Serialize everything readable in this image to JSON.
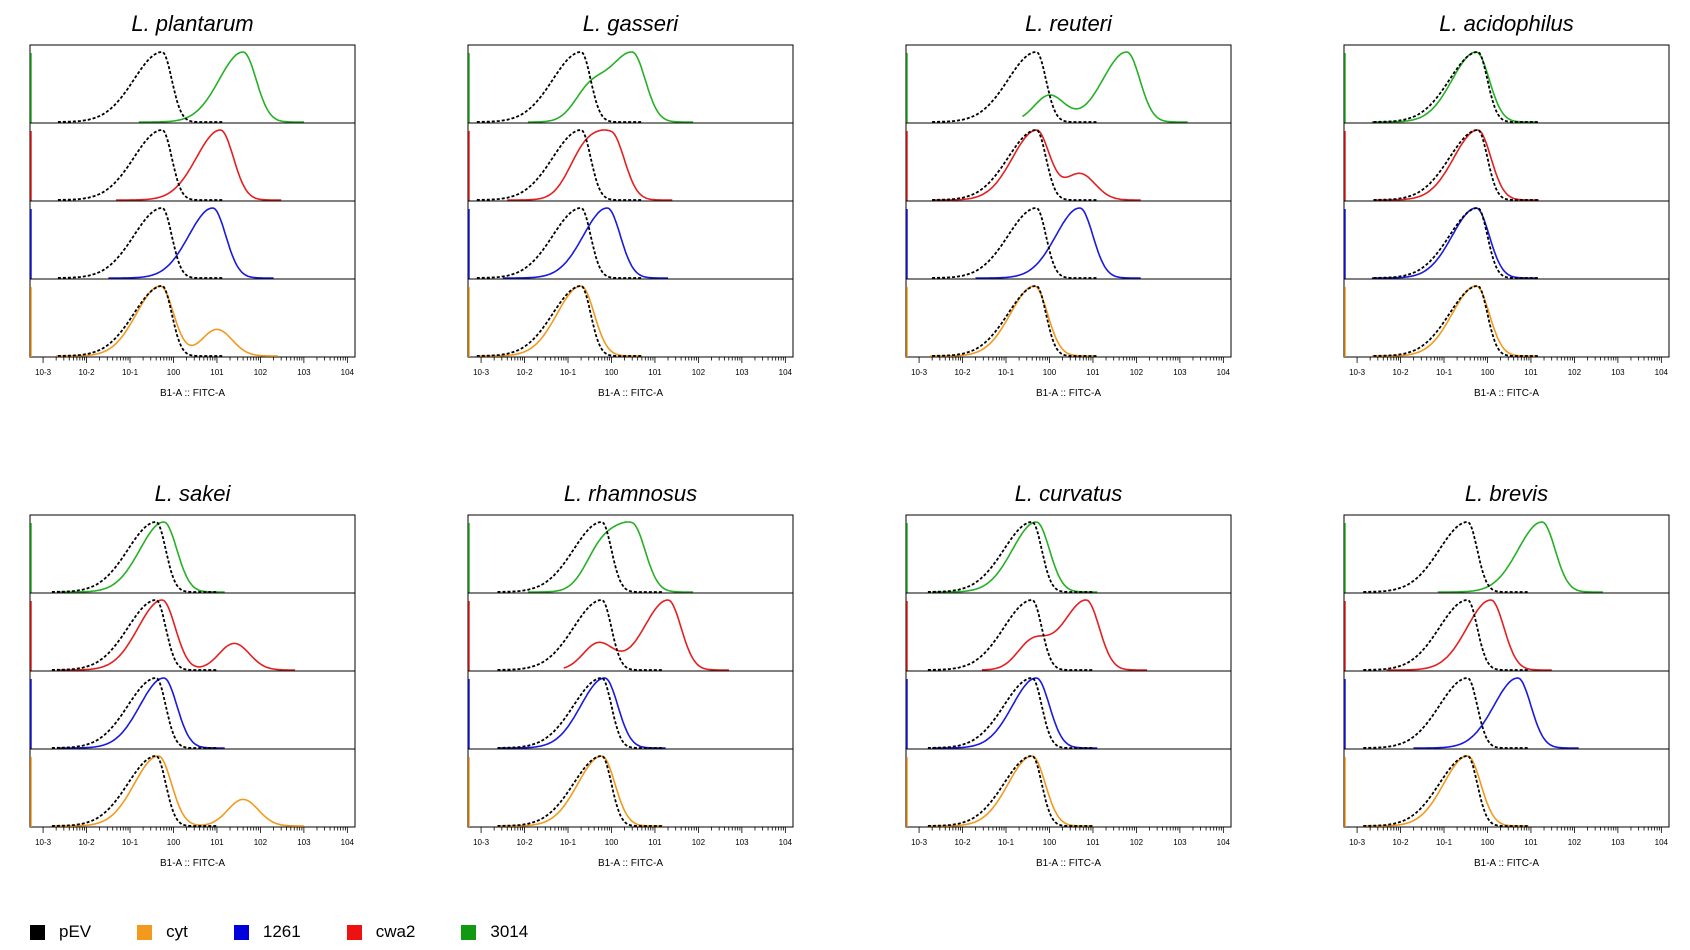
{
  "colors": {
    "pEV": "#000000",
    "cyt": "#f39a1e",
    "1261": "#1a1adf",
    "cwa2": "#e32020",
    "3014": "#26b026",
    "axis": "#000000"
  },
  "legend": [
    {
      "key": "pEV",
      "label": "pEV",
      "swatch": "#000000"
    },
    {
      "key": "cyt",
      "label": "cyt",
      "swatch": "#f39a1e"
    },
    {
      "key": "1261",
      "label": "1261",
      "swatch": "#0000dd"
    },
    {
      "key": "cwa2",
      "label": "cwa2",
      "swatch": "#ee1111"
    },
    {
      "key": "3014",
      "label": "3014",
      "swatch": "#119911"
    }
  ],
  "chart_data": [
    {
      "type": "line",
      "title": "L. plantarum",
      "xlabel": "B1-A :: FITC-A",
      "xscale": "log",
      "xlim": [
        0.0005,
        15000
      ],
      "xticks": [
        "10-3",
        "10-2",
        "10-1",
        "100",
        "101",
        "102",
        "103",
        "104"
      ],
      "control": {
        "name": "pEV",
        "peak": 0.55
      },
      "rows": [
        {
          "series": "3014",
          "peak": 40
        },
        {
          "series": "cwa2",
          "peak": 12
        },
        {
          "series": "1261",
          "peak": 8
        },
        {
          "series": "cyt",
          "peak": 0.5,
          "shoulder": 10
        }
      ]
    },
    {
      "type": "line",
      "title": "L. gasseri",
      "xlabel": "B1-A :: FITC-A",
      "xscale": "log",
      "xlim": [
        0.0005,
        15000
      ],
      "xticks": [
        "10-3",
        "10-2",
        "10-1",
        "100",
        "101",
        "102",
        "103",
        "104"
      ],
      "control": {
        "name": "pEV",
        "peak": 0.2
      },
      "rows": [
        {
          "series": "3014",
          "peak": 3,
          "shoulder": 0.3
        },
        {
          "series": "cwa2",
          "peak": 1,
          "shoulder": 0.2
        },
        {
          "series": "1261",
          "peak": 0.8
        },
        {
          "series": "cyt",
          "peak": 0.2
        }
      ]
    },
    {
      "type": "line",
      "title": "L. reuteri",
      "xlabel": "B1-A :: FITC-A",
      "xscale": "log",
      "xlim": [
        0.0005,
        15000
      ],
      "xticks": [
        "10-3",
        "10-2",
        "10-1",
        "100",
        "101",
        "102",
        "103",
        "104"
      ],
      "control": {
        "name": "pEV",
        "peak": 0.5
      },
      "rows": [
        {
          "series": "3014",
          "peak": 60,
          "shoulder": 1
        },
        {
          "series": "cwa2",
          "peak": 0.5,
          "shoulder": 5
        },
        {
          "series": "1261",
          "peak": 5
        },
        {
          "series": "cyt",
          "peak": 0.45
        }
      ]
    },
    {
      "type": "line",
      "title": "L. acidophilus",
      "xlabel": "B1-A :: FITC-A",
      "xscale": "log",
      "xlim": [
        0.0005,
        15000
      ],
      "xticks": [
        "10-3",
        "10-2",
        "10-1",
        "100",
        "101",
        "102",
        "103",
        "104"
      ],
      "control": {
        "name": "pEV",
        "peak": 0.6
      },
      "rows": [
        {
          "series": "3014",
          "peak": 0.55
        },
        {
          "series": "cwa2",
          "peak": 0.6
        },
        {
          "series": "1261",
          "peak": 0.55
        },
        {
          "series": "cyt",
          "peak": 0.55
        }
      ]
    },
    {
      "type": "line",
      "title": "L. sakei",
      "xlabel": "B1-A :: FITC-A",
      "xscale": "log",
      "xlim": [
        0.0005,
        15000
      ],
      "xticks": [
        "10-3",
        "10-2",
        "10-1",
        "100",
        "101",
        "102",
        "103",
        "104"
      ],
      "control": {
        "name": "pEV",
        "peak": 0.4
      },
      "rows": [
        {
          "series": "3014",
          "peak": 0.6
        },
        {
          "series": "cwa2",
          "peak": 0.55,
          "shoulder": 25
        },
        {
          "series": "1261",
          "peak": 0.6
        },
        {
          "series": "cyt",
          "peak": 0.45,
          "shoulder": 40
        }
      ]
    },
    {
      "type": "line",
      "title": "L. rhamnosus",
      "xlabel": "B1-A :: FITC-A",
      "xscale": "log",
      "xlim": [
        0.0005,
        15000
      ],
      "xticks": [
        "10-3",
        "10-2",
        "10-1",
        "100",
        "101",
        "102",
        "103",
        "104"
      ],
      "control": {
        "name": "pEV",
        "peak": 0.6
      },
      "rows": [
        {
          "series": "3014",
          "peak": 3,
          "shoulder": 0.5
        },
        {
          "series": "cwa2",
          "peak": 20,
          "shoulder": 0.5
        },
        {
          "series": "1261",
          "peak": 0.7
        },
        {
          "series": "cyt",
          "peak": 0.6
        }
      ]
    },
    {
      "type": "line",
      "title": "L. curvatus",
      "xlabel": "B1-A :: FITC-A",
      "xscale": "log",
      "xlim": [
        0.0005,
        15000
      ],
      "xticks": [
        "10-3",
        "10-2",
        "10-1",
        "100",
        "101",
        "102",
        "103",
        "104"
      ],
      "control": {
        "name": "pEV",
        "peak": 0.4
      },
      "rows": [
        {
          "series": "3014",
          "peak": 0.5
        },
        {
          "series": "cwa2",
          "peak": 7,
          "shoulder": 0.4
        },
        {
          "series": "1261",
          "peak": 0.5
        },
        {
          "series": "cyt",
          "peak": 0.4
        }
      ]
    },
    {
      "type": "line",
      "title": "L. brevis",
      "xlabel": "B1-A :: FITC-A",
      "xscale": "log",
      "xlim": [
        0.0005,
        15000
      ],
      "xticks": [
        "10-3",
        "10-2",
        "10-1",
        "100",
        "101",
        "102",
        "103",
        "104"
      ],
      "control": {
        "name": "pEV",
        "peak": 0.35
      },
      "rows": [
        {
          "series": "3014",
          "peak": 18
        },
        {
          "series": "cwa2",
          "peak": 1.2
        },
        {
          "series": "1261",
          "peak": 5
        },
        {
          "series": "cyt",
          "peak": 0.35
        }
      ]
    }
  ]
}
